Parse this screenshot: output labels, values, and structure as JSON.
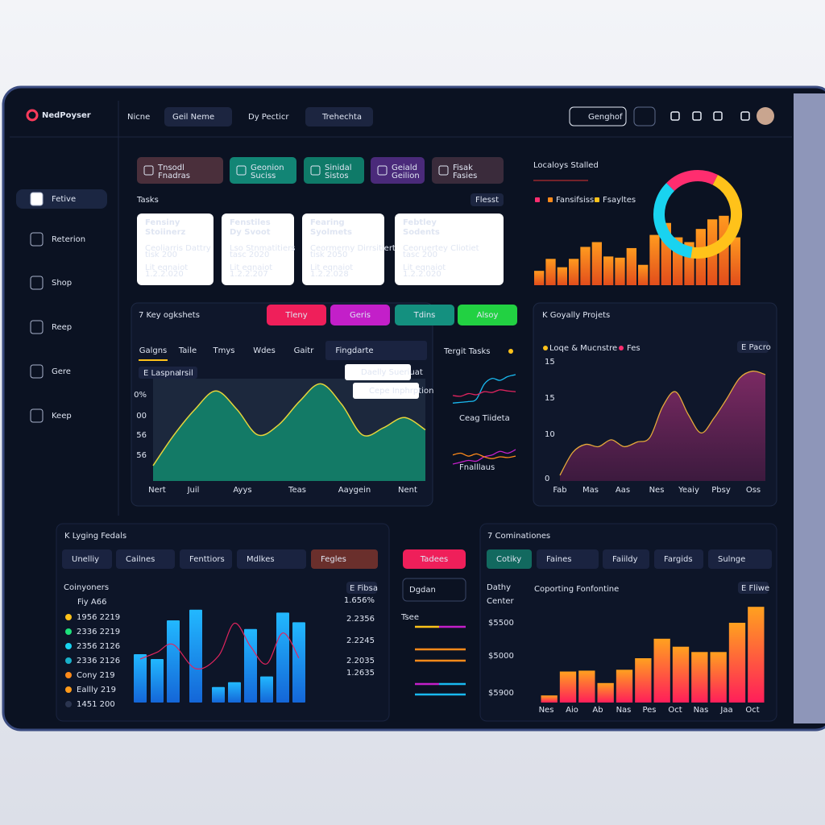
{
  "header": {
    "brand": "NedPoyser",
    "nav": [
      "Nicne",
      "Geil Neme",
      "Dy Pecticr",
      "Trehechta"
    ],
    "button": "Genghof"
  },
  "sidebar": [
    "Fetive",
    "Reterion",
    "Shop",
    "Reep",
    "Gere",
    "Keep"
  ],
  "tiles": [
    [
      "Tnsodl",
      "Fnadras"
    ],
    [
      "Geonion",
      "Suciss"
    ],
    [
      "Sinidal",
      "Sistos"
    ],
    [
      "Geiald",
      "Geilion"
    ],
    [
      "Fisak",
      "Fasies"
    ]
  ],
  "tasks": {
    "title": "Tasks",
    "button": "Flesst",
    "cards": [
      [
        "Fensiny",
        "Stoiinerz",
        "Ceoliarris Dattry",
        "tisk 200",
        "Lit eqnaiot",
        "1.2.2.020"
      ],
      [
        "Fenstiles",
        "Dy Svoot",
        "Lso Stnmatitiers",
        "tasc 2020",
        "Lit eqnaiot",
        "1.2.2.207"
      ],
      [
        "Fearing",
        "Syolmets",
        "Ceormerny Dirrsitiert",
        "tisk 2050",
        "Lit eqnaiot",
        "1.2.2.028"
      ],
      [
        "Febtley",
        "Sodents",
        "Ceoruertey Cliotiet",
        "tasc 200",
        "Lit eqnaiot",
        "1.2.2.020"
      ]
    ]
  },
  "localoys": {
    "title": "Localoys Stalled",
    "legend": [
      "Fansifsiss",
      "Fsayltes"
    ],
    "ylim": [
      0,
      70
    ],
    "bars": [
      12,
      22,
      15,
      22,
      32,
      36,
      24,
      23,
      31,
      17,
      42,
      52,
      40,
      36,
      47,
      55,
      58,
      40
    ],
    "donut": [
      {
        "value": 20,
        "color": "#ff2d6f"
      },
      {
        "value": 45,
        "color": "#ffc21a"
      },
      {
        "value": 35,
        "color": "#19d3f0"
      }
    ]
  },
  "insights": {
    "title": "7 Key ogkshets",
    "pills": [
      "Tleny",
      "Geris",
      "Tdins",
      "Alsoy"
    ],
    "tabs": [
      "Galgns",
      "Taile",
      "Tmys",
      "Wdes",
      "Gaitr",
      "Fingdarte"
    ],
    "badge": [
      "E Laspna",
      "Irsil"
    ],
    "tooltips": [
      "Daelly Sueriuat",
      "Cepe Inphrption"
    ],
    "yticks": [
      "0%",
      "00",
      "56",
      "56"
    ],
    "xlabels": [
      "Nert",
      "Juil",
      "Ayys",
      "Teas",
      "Aaygein",
      "Nent"
    ],
    "ylim": [
      0,
      100
    ],
    "values": [
      15,
      45,
      70,
      88,
      70,
      45,
      55,
      78,
      95,
      75,
      45,
      52,
      62,
      50
    ]
  },
  "target": {
    "title": "Tergit Tasks",
    "labels": [
      "Ceag Tiideta",
      "Fnalllaus"
    ],
    "ylim": [
      0,
      100
    ],
    "a": [
      10,
      12,
      14,
      20,
      60,
      75,
      70,
      80,
      85
    ],
    "b": [
      30,
      28,
      35,
      32,
      40,
      38,
      45,
      42,
      40
    ],
    "c": [
      20,
      25,
      30,
      28,
      40,
      45,
      55,
      50,
      60
    ],
    "d": [
      45,
      50,
      42,
      48,
      40,
      35,
      40,
      38,
      42
    ]
  },
  "projects": {
    "title": "K Goyally Projets",
    "legend": [
      "Loqe & Mucnstre",
      "Fes"
    ],
    "button": "E Pacro",
    "yticks": [
      "15",
      "15",
      "10",
      "0"
    ],
    "xlabels": [
      "Fab",
      "Mas",
      "Aas",
      "Nes",
      "Yeaiy",
      "Pbsy",
      "Oss"
    ],
    "ylim": [
      0,
      100
    ],
    "values": [
      5,
      25,
      32,
      30,
      36,
      30,
      34,
      38,
      65,
      78,
      58,
      42,
      55,
      72,
      90,
      96,
      93
    ]
  },
  "ledgers": {
    "title": "K Lyging Fedals",
    "tabs": [
      "Unelliy",
      "Cailnes",
      "Fenttiors",
      "Mdlkes",
      "Fegles"
    ],
    "label": "Coinyoners",
    "sub": "Fiy A66",
    "button": "E Fibsa",
    "legend": [
      {
        "name": "1956 2219",
        "color": "#ffc21a"
      },
      {
        "name": "2336 2219",
        "color": "#1ee07a"
      },
      {
        "name": "2356 2126",
        "color": "#19d3f0"
      },
      {
        "name": "2336 2126",
        "color": "#19b0c9"
      },
      {
        "name": "Cony 219",
        "color": "#ff8a1a"
      },
      {
        "name": "Eallly 219",
        "color": "#ff9a1a"
      },
      {
        "name": "1451 200",
        "color": "#2b3550"
      }
    ],
    "right_ticks": [
      "1.656%",
      "2.2356",
      "2.2245",
      "2.2035",
      "1.2635"
    ],
    "ylim": [
      0,
      110
    ],
    "bars": [
      50,
      45,
      85,
      96,
      16,
      21,
      76,
      27,
      93,
      83
    ],
    "line": [
      45,
      52,
      60,
      35,
      48,
      82,
      58,
      40,
      72,
      46
    ]
  },
  "tadees": {
    "button": "Tadees",
    "dropdown": "Dgdan",
    "label": "Tsee"
  },
  "combinations": {
    "title": "7 Cominationes",
    "tabs": [
      "Cotiky",
      "Faines",
      "Faiildy",
      "Fargids",
      "Sulnge"
    ],
    "side_title": [
      "Dathy",
      "Center"
    ],
    "side_values": [
      "$5500",
      "$5000",
      "$5900"
    ],
    "chart_title": "Coporting Fonfontine",
    "button": "E Fliwe",
    "xlabels": [
      "Nes",
      "Aio",
      "Ab",
      "Nas",
      "Pes",
      "Oct",
      "Nas",
      "Jaa",
      "Oct"
    ],
    "ylim": [
      0,
      120
    ],
    "bars": [
      8,
      35,
      36,
      22,
      37,
      50,
      72,
      63,
      57,
      57,
      90,
      108
    ]
  }
}
